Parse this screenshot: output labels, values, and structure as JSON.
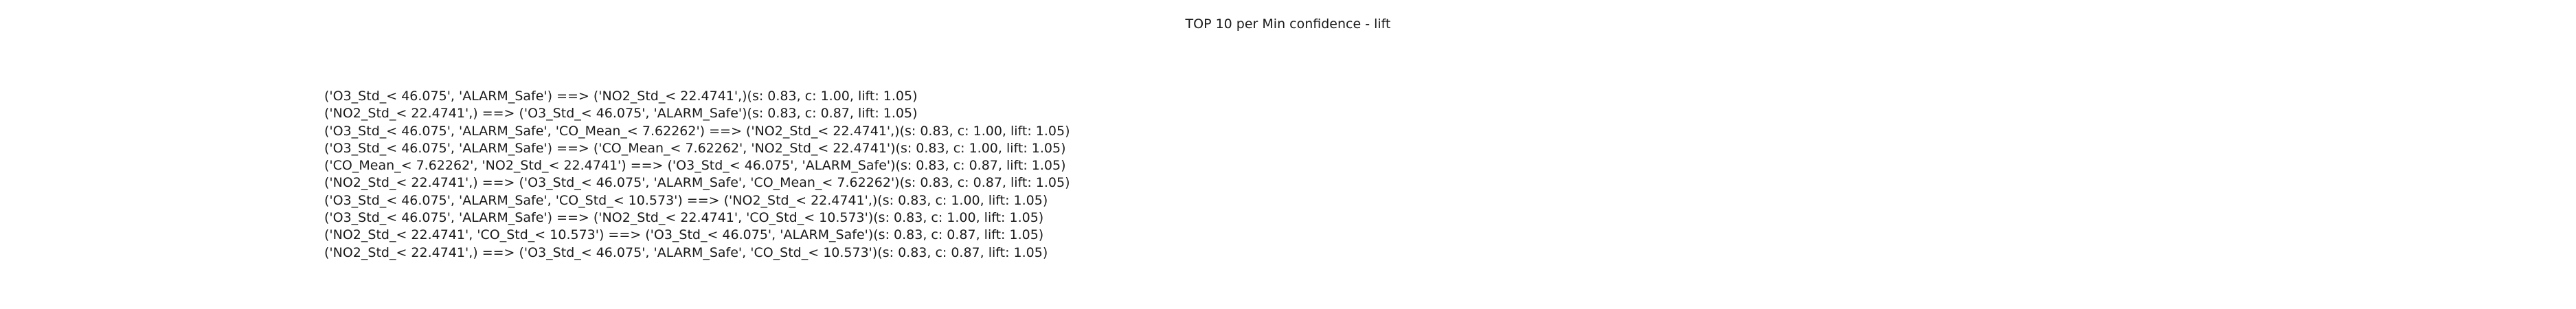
{
  "title": "TOP 10 per Min confidence - lift",
  "rules": [
    "('O3_Std_< 46.075', 'ALARM_Safe') ==> ('NO2_Std_< 22.4741',)(s: 0.83, c: 1.00, lift: 1.05)",
    "('NO2_Std_< 22.4741',) ==> ('O3_Std_< 46.075', 'ALARM_Safe')(s: 0.83, c: 0.87, lift: 1.05)",
    "('O3_Std_< 46.075', 'ALARM_Safe', 'CO_Mean_< 7.62262') ==> ('NO2_Std_< 22.4741',)(s: 0.83, c: 1.00, lift: 1.05)",
    "('O3_Std_< 46.075', 'ALARM_Safe') ==> ('CO_Mean_< 7.62262', 'NO2_Std_< 22.4741')(s: 0.83, c: 1.00, lift: 1.05)",
    "('CO_Mean_< 7.62262', 'NO2_Std_< 22.4741') ==> ('O3_Std_< 46.075', 'ALARM_Safe')(s: 0.83, c: 0.87, lift: 1.05)",
    "('NO2_Std_< 22.4741',) ==> ('O3_Std_< 46.075', 'ALARM_Safe', 'CO_Mean_< 7.62262')(s: 0.83, c: 0.87, lift: 1.05)",
    "('O3_Std_< 46.075', 'ALARM_Safe', 'CO_Std_< 10.573') ==> ('NO2_Std_< 22.4741',)(s: 0.83, c: 1.00, lift: 1.05)",
    "('O3_Std_< 46.075', 'ALARM_Safe') ==> ('NO2_Std_< 22.4741', 'CO_Std_< 10.573')(s: 0.83, c: 1.00, lift: 1.05)",
    "('NO2_Std_< 22.4741', 'CO_Std_< 10.573') ==> ('O3_Std_< 46.075', 'ALARM_Safe')(s: 0.83, c: 0.87, lift: 1.05)",
    "('NO2_Std_< 22.4741',) ==> ('O3_Std_< 46.075', 'ALARM_Safe', 'CO_Std_< 10.573')(s: 0.83, c: 0.87, lift: 1.05)"
  ]
}
